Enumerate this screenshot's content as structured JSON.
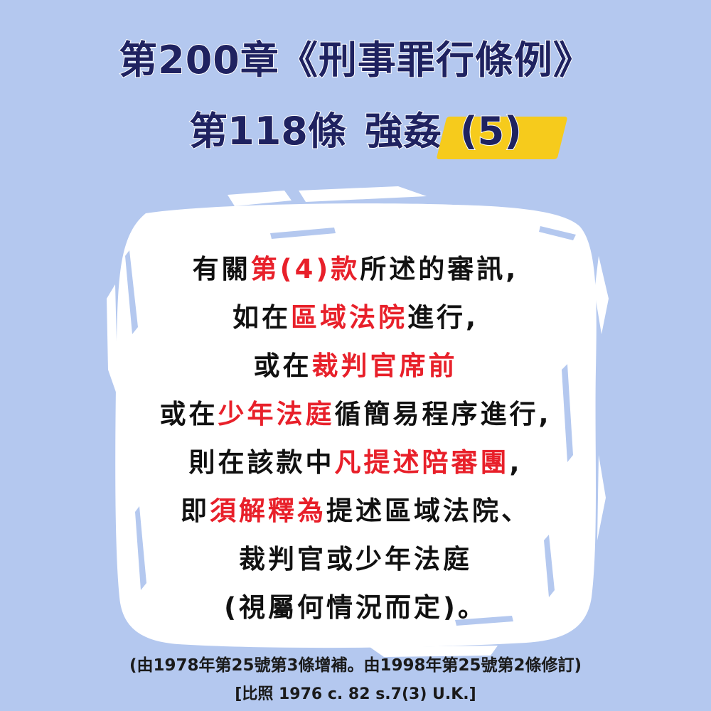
{
  "title": {
    "line1": "第200章《刑事罪行條例》",
    "line2_section": "第118條",
    "line2_topic": "強姦",
    "line2_number": "(5)"
  },
  "body": {
    "line1": {
      "a": "有關",
      "b": "第(4)款",
      "c": "所述的審訊,"
    },
    "line2": {
      "a": "如在",
      "b": "區域法院",
      "c": "進行,"
    },
    "line3": {
      "a": "或在",
      "b": "裁判官席前"
    },
    "line4": {
      "a": "或在",
      "b": "少年法庭",
      "c": "循簡易程序進行,"
    },
    "line5": {
      "a": "則在該款中",
      "b": "凡提述陪審團",
      "c": ","
    },
    "line6": {
      "a": "即",
      "b": "須解釋為",
      "c": "提述區域法院、"
    },
    "line7": "裁判官或少年法庭",
    "line8": "(視屬何情況而定)。"
  },
  "footer": {
    "amendment": "(由1978年第25號第3條增補。由1998年第25號第2條修訂)",
    "reference": "[比照 1976 c. 82 s.7(3) U.K.]"
  },
  "colors": {
    "background": "#b4c8ef",
    "title": "#1f2260",
    "highlight": "#f6cb1c",
    "emphasis": "#e8202a",
    "panel": "#ffffff"
  }
}
